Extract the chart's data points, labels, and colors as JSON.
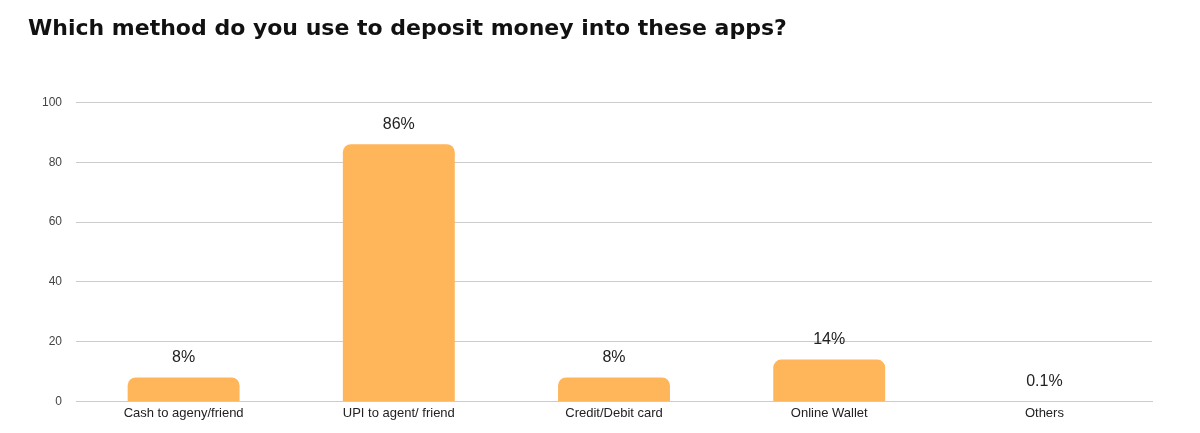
{
  "chart_data": {
    "type": "bar",
    "title": "Which method do you use to deposit money into these apps?",
    "categories": [
      "Cash to ageny/friend",
      "UPI to agent/ friend",
      "Credit/Debit card",
      "Online Wallet",
      "Others"
    ],
    "values": [
      8,
      86,
      8,
      14,
      0.1
    ],
    "value_labels": [
      "8%",
      "86%",
      "8%",
      "14%",
      "0.1%"
    ],
    "color": "#ffb55a",
    "ylim": [
      0,
      100
    ],
    "yticks": [
      0,
      20,
      40,
      60,
      80,
      100
    ],
    "grid": "y",
    "legend": false
  }
}
